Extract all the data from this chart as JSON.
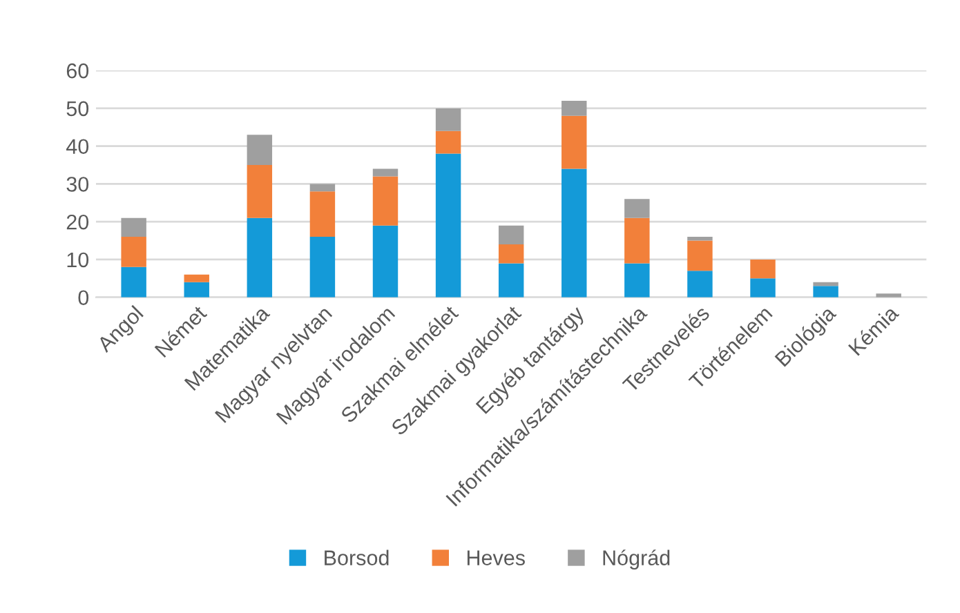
{
  "chart_data": {
    "type": "bar",
    "stacked": true,
    "categories": [
      "Angol",
      "Német",
      "Matematika",
      "Magyar nyelvtan",
      "Magyar irodalom",
      "Szakmai elmélet",
      "Szakmai gyakorlat",
      "Egyéb tantárgy",
      "Informatika/számítástechnika",
      "Testnevelés",
      "Történelem",
      "Biológia",
      "Kémia"
    ],
    "series": [
      {
        "name": "Borsod",
        "color": "#149ad8",
        "values": [
          8,
          4,
          21,
          16,
          19,
          38,
          9,
          34,
          9,
          7,
          5,
          3,
          0
        ]
      },
      {
        "name": "Heves",
        "color": "#f2803a",
        "values": [
          8,
          2,
          14,
          12,
          13,
          6,
          5,
          14,
          12,
          8,
          5,
          0,
          0
        ]
      },
      {
        "name": "Nógrád",
        "color": "#9f9f9f",
        "values": [
          5,
          0,
          8,
          2,
          2,
          6,
          5,
          4,
          5,
          1,
          0,
          1,
          1
        ]
      }
    ],
    "ylim": [
      0,
      60
    ],
    "yticks": [
      0,
      10,
      20,
      30,
      40,
      50,
      60
    ],
    "grid": "y",
    "legend": "bottom"
  }
}
